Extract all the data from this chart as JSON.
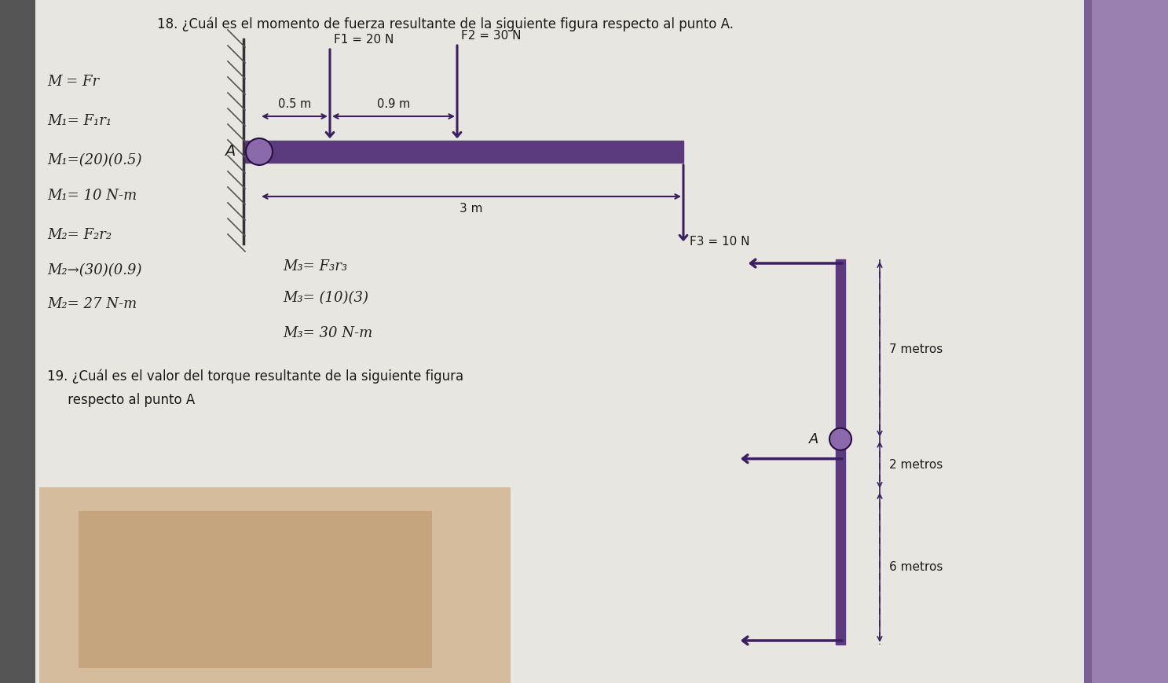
{
  "bg_color": "#c8c4be",
  "page_color": "#e8e6e0",
  "beam_color": "#5b3a7e",
  "arrow_color": "#3a2060",
  "pivot_color": "#8a6aab",
  "text_color": "#1a1a1a",
  "hand_color": "#222222",
  "title18": "18. ¿Cuál es el momento de fuerza resultante de la siguiente figura respecto al punto A.",
  "title19_line1": "19. ¿Cuál es el valor del torque resultante de la siguiente figura",
  "title19_line2": "     respecto al punto A",
  "F1_label": "F1 = 20 N",
  "F2_label": "F2 = 30 N",
  "F3_label": "F3 = 10 N",
  "d1_label": "0.5 m",
  "d2_label": "0.9 m",
  "d3_label": "3 m",
  "label_7m": "7 metros",
  "label_2m": "2 metros",
  "label_6m": "6 metros",
  "label_A": "A",
  "notes_left": [
    "M = Fr",
    "M₁= F₁r₁",
    "M₁=(20)(0.5)",
    "M₁= 10 N-m",
    "M₂= F₂r₂",
    "M₂→(30)(0.9)",
    "M₂= 27 N-m"
  ],
  "notes_mid": [
    "M₃= F₃r₃",
    "M₃= (10)(3)",
    "M₃= 30 N-m"
  ]
}
